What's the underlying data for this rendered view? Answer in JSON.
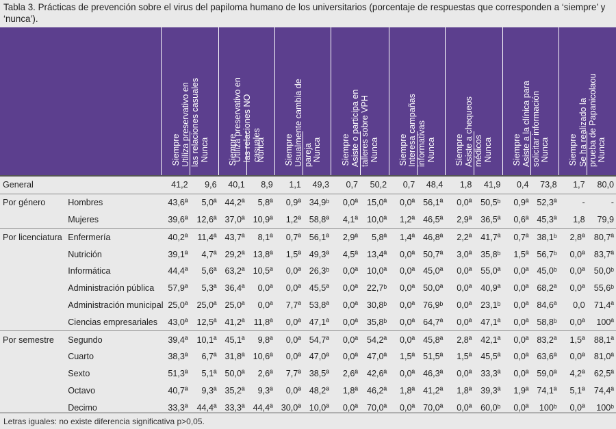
{
  "caption": "Tabla 3. Prácticas de prevención sobre el virus del papiloma humano de los universitarios (porcentaje de respuestas que corresponden a ‘siempre’ y ‘nunca’).",
  "groups": [
    "Utiliza preservativo en las relaciones casuales",
    "Utiliza preservativo en las relaciones NO casuales",
    "Usualmente cambia de pareja",
    "Asiste o participa en talleres sobre VPH",
    "Interesa campañas informativas",
    "Asiste a chequeos médicos",
    "Asiste a la clínica para solicitar información",
    "Se ha realizado la prueba de Papanicolaou"
  ],
  "sub_siempre": "Siempre",
  "sub_nunca": "Nunca",
  "rows": [
    {
      "cat": "General",
      "sub": "",
      "cells": [
        "41,2",
        "9,6",
        "40,1",
        "8,9",
        "1,1",
        "49,3",
        "0,7",
        "50,2",
        "0,7",
        "48,4",
        "1,8",
        "41,9",
        "0,4",
        "73,8",
        "1,7",
        "80,0"
      ]
    },
    {
      "cat": "Por género",
      "sub": "Hombres",
      "cells": [
        "43,6ª",
        "5,0ª",
        "44,2ª",
        "5,8ª",
        "0,9ª",
        "34,9ᵇ",
        "0,0ª",
        "15,0ª",
        "0,0ª",
        "56,1ª",
        "0,0ª",
        "50,5ᵇ",
        "0,9ª",
        "52,3ª",
        "-",
        "-"
      ]
    },
    {
      "cat": "",
      "sub": "Mujeres",
      "cells": [
        "39,6ª",
        "12,6ª",
        "37,0ª",
        "10,9ª",
        "1,2ª",
        "58,8ª",
        "4,1ª",
        "10,0ª",
        "1,2ª",
        "46,5ª",
        "2,9ª",
        "36,5ª",
        "0,6ª",
        "45,3ª",
        "1,8",
        "79,9"
      ]
    },
    {
      "cat": "Por licenciatura",
      "sub": "Enfermería",
      "cells": [
        "40,2ª",
        "11,4ª",
        "43,7ª",
        "8,1ª",
        "0,7ª",
        "56,1ª",
        "2,9ª",
        "5,8ª",
        "1,4ª",
        "46,8ª",
        "2,2ª",
        "41,7ª",
        "0,7ª",
        "38,1ᵇ",
        "2,8ª",
        "80,7ª"
      ]
    },
    {
      "cat": "",
      "sub": "Nutrición",
      "cells": [
        "39,1ª",
        "4,7ª",
        "29,2ª",
        "13,8ª",
        "1,5ª",
        "49,3ª",
        "4,5ª",
        "13,4ª",
        "0,0ª",
        "50,7ª",
        "3,0ª",
        "35,8ᵇ",
        "1,5ª",
        "56,7ᵇ",
        "0,0ª",
        "83,7ª"
      ]
    },
    {
      "cat": "",
      "sub": "Informática",
      "cells": [
        "44,4ª",
        "5,6ª",
        "63,2ª",
        "10,5ª",
        "0,0ª",
        "26,3ᵇ",
        "0,0ª",
        "10,0ª",
        "0,0ª",
        "45,0ª",
        "0,0ª",
        "55,0ª",
        "0,0ª",
        "45,0ᵇ",
        "0,0ª",
        "50,0ᵇ"
      ]
    },
    {
      "cat": "",
      "sub": "Administración pública",
      "cells": [
        "57,9ª",
        "5,3ª",
        "36,4ª",
        "0,0ª",
        "0,0ª",
        "45,5ª",
        "0,0ª",
        "22,7ᵇ",
        "0,0ª",
        "50,0ª",
        "0,0ª",
        "40,9ª",
        "0,0ª",
        "68,2ª",
        "0,0ª",
        "55,6ᵇ"
      ]
    },
    {
      "cat": "",
      "sub": "Administración municipal",
      "cells": [
        "25,0ª",
        "25,0ª",
        "25,0ª",
        "0,0ª",
        "7,7ª",
        "53,8ª",
        "0,0ª",
        "30,8ᵇ",
        "0,0ª",
        "76,9ᵇ",
        "0,0ª",
        "23,1ᵇ",
        "0,0ª",
        "84,6ª",
        "0,0",
        "71,4ª"
      ]
    },
    {
      "cat": "",
      "sub": "Ciencias empresariales",
      "cells": [
        "43,0ª",
        "12,5ª",
        "41,2ª",
        "11,8ª",
        "0,0ª",
        "47,1ª",
        "0,0ª",
        "35,8ᵇ",
        "0,0ª",
        "64,7ª",
        "0,0ª",
        "47,1ª",
        "0,0ª",
        "58,8ᵇ",
        "0,0ª",
        "100ª"
      ]
    },
    {
      "cat": "Por semestre",
      "sub": "Segundo",
      "cells": [
        "39,4ª",
        "10,1ª",
        "45,1ª",
        "9,8ª",
        "0,0ª",
        "54,7ª",
        "0,0ª",
        "54,2ª",
        "0,0ª",
        "45,8ª",
        "2,8ª",
        "42,1ª",
        "0,0ª",
        "83,2ª",
        "1,5ª",
        "88,1ª"
      ]
    },
    {
      "cat": "",
      "sub": "Cuarto",
      "cells": [
        "38,3ª",
        "6,7ª",
        "31,8ª",
        "10,6ª",
        "0,0ª",
        "47,0ª",
        "0,0ª",
        "47,0ª",
        "1,5ª",
        "51,5ª",
        "1,5ª",
        "45,5ª",
        "0,0ª",
        "63,6ª",
        "0,0ª",
        "81,0ª"
      ]
    },
    {
      "cat": "",
      "sub": "Sexto",
      "cells": [
        "51,3ª",
        "5,1ª",
        "50,0ª",
        "2,6ª",
        "7,7ª",
        "38,5ª",
        "2,6ª",
        "42,6ª",
        "0,0ª",
        "46,3ª",
        "0,0ª",
        "33,3ª",
        "0,0ª",
        "59,0ª",
        "4,2ª",
        "62,5ª"
      ]
    },
    {
      "cat": "",
      "sub": "Octavo",
      "cells": [
        "40,7ª",
        "9,3ª",
        "35,2ª",
        "9,3ª",
        "0,0ª",
        "48,2ª",
        "1,8ª",
        "46,2ª",
        "1,8ª",
        "41,2ª",
        "1,8ª",
        "39,3ª",
        "1,9ª",
        "74,1ª",
        "5,1ª",
        "74,4ª"
      ]
    },
    {
      "cat": "",
      "sub": "Decimo",
      "cells": [
        "33,3ª",
        "44,4ª",
        "33,3ª",
        "44,4ª",
        "30,0ª",
        "10,0ª",
        "0,0ª",
        "70,0ª",
        "0,0ª",
        "70,0ª",
        "0,0ª",
        "60,0ᵇ",
        "0,0ª",
        "100ᵇ",
        "0,0ª",
        "100ᵇ"
      ]
    }
  ],
  "footnote": "Letras iguales: no existe diferencia significativa p>0,05.",
  "colors": {
    "header_bg": "#5c3f8e",
    "header_text": "#ffffff",
    "page_bg": "#e9e9e9"
  }
}
